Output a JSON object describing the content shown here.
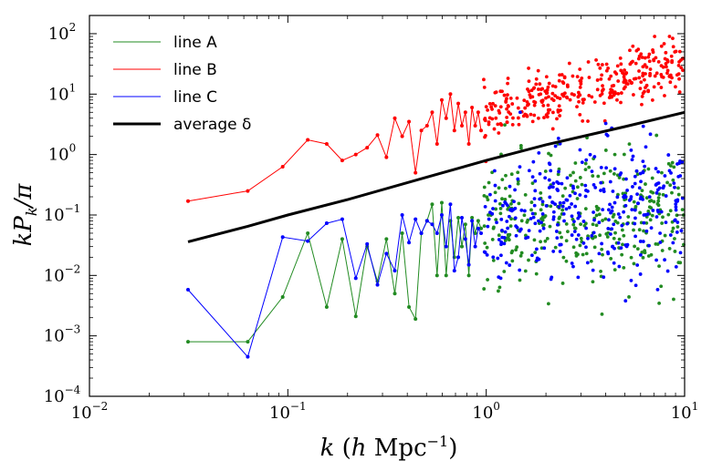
{
  "chart_data": {
    "type": "scatter",
    "xscale": "log",
    "yscale": "log",
    "xlim": [
      0.01,
      10
    ],
    "ylim": [
      0.0001,
      200
    ],
    "xticks": [
      {
        "value": 0.01,
        "base": "10",
        "exp": "−2"
      },
      {
        "value": 0.1,
        "base": "10",
        "exp": "−1"
      },
      {
        "value": 1,
        "base": "10",
        "exp": "0"
      },
      {
        "value": 10,
        "base": "10",
        "exp": "1"
      }
    ],
    "yticks": [
      {
        "value": 0.0001,
        "base": "10",
        "exp": "−4"
      },
      {
        "value": 0.001,
        "base": "10",
        "exp": "−3"
      },
      {
        "value": 0.01,
        "base": "10",
        "exp": "−2"
      },
      {
        "value": 0.1,
        "base": "10",
        "exp": "−1"
      },
      {
        "value": 1,
        "base": "10",
        "exp": "0"
      },
      {
        "value": 10,
        "base": "10",
        "exp": "1"
      },
      {
        "value": 100,
        "base": "10",
        "exp": "2"
      }
    ],
    "xlabel": "k (h Mpc⁻¹)",
    "ylabel": "k P_k / π",
    "grid": false,
    "legend_position": "top-left",
    "legend": [
      {
        "label": "line A",
        "color": "#228B22",
        "style": "thin"
      },
      {
        "label": "line B",
        "color": "#ff0000",
        "style": "thin"
      },
      {
        "label": "line C",
        "color": "#0000ff",
        "style": "thin"
      },
      {
        "label": "average δ",
        "color": "#000000",
        "style": "thick"
      }
    ],
    "series": [
      {
        "name": "line A",
        "color": "#228B22",
        "x": [
          0.0314,
          0.0628,
          0.0942,
          0.126,
          0.157,
          0.188,
          0.22,
          0.251,
          0.283,
          0.314,
          0.346,
          0.377,
          0.408,
          0.44,
          0.471,
          0.503,
          0.534,
          0.565,
          0.597,
          0.628,
          0.66,
          0.691,
          0.723,
          0.754,
          0.785,
          0.817,
          0.848,
          0.88,
          0.911,
          0.942
        ],
        "y": [
          0.0008,
          0.0008,
          0.0044,
          0.05,
          0.003,
          0.04,
          0.0021,
          0.03,
          0.008,
          0.04,
          0.005,
          0.05,
          0.003,
          0.0019,
          0.05,
          0.08,
          0.15,
          0.01,
          0.16,
          0.01,
          0.08,
          0.02,
          0.09,
          0.03,
          0.07,
          0.01,
          0.09,
          0.05,
          0.08,
          0.06
        ]
      },
      {
        "name": "line B",
        "color": "#ff0000",
        "x": [
          0.0314,
          0.0628,
          0.0942,
          0.126,
          0.157,
          0.188,
          0.22,
          0.251,
          0.283,
          0.314,
          0.346,
          0.377,
          0.408,
          0.44,
          0.471,
          0.503,
          0.534,
          0.565,
          0.597,
          0.628,
          0.66,
          0.691,
          0.723,
          0.754,
          0.785,
          0.817,
          0.848,
          0.88,
          0.911,
          0.942
        ],
        "y": [
          0.17,
          0.25,
          0.63,
          1.75,
          1.5,
          0.8,
          1.0,
          1.3,
          2.1,
          0.9,
          4.0,
          2.0,
          3.5,
          0.5,
          2.5,
          3.0,
          5.0,
          1.5,
          8.0,
          4.0,
          10.0,
          2.5,
          7.0,
          3.0,
          5.0,
          1.5,
          6.0,
          3.0,
          5.0,
          2.5
        ]
      },
      {
        "name": "line C",
        "color": "#0000ff",
        "x": [
          0.0314,
          0.0628,
          0.0942,
          0.126,
          0.157,
          0.188,
          0.22,
          0.251,
          0.283,
          0.314,
          0.346,
          0.377,
          0.408,
          0.44,
          0.471,
          0.503,
          0.534,
          0.565,
          0.597,
          0.628,
          0.66,
          0.691,
          0.723,
          0.754,
          0.785,
          0.817,
          0.848,
          0.88,
          0.911,
          0.942
        ],
        "y": [
          0.0058,
          0.00045,
          0.043,
          0.037,
          0.073,
          0.085,
          0.009,
          0.033,
          0.007,
          0.023,
          0.012,
          0.1,
          0.035,
          0.085,
          0.05,
          0.08,
          0.07,
          0.05,
          0.1,
          0.03,
          0.15,
          0.012,
          0.02,
          0.09,
          0.04,
          0.015,
          0.08,
          0.03,
          0.06,
          0.05
        ]
      },
      {
        "name": "average δ",
        "color": "#000000",
        "x": [
          0.0314,
          0.0628,
          0.1,
          0.2,
          0.5,
          1,
          2,
          5,
          10
        ],
        "y": [
          0.036,
          0.065,
          0.1,
          0.18,
          0.42,
          0.8,
          1.45,
          2.9,
          5.0
        ]
      }
    ]
  }
}
